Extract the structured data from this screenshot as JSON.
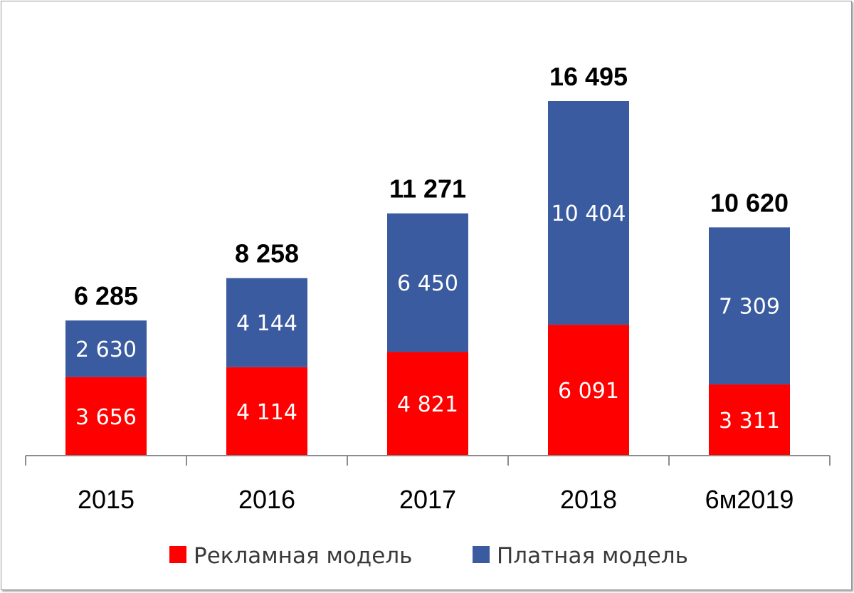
{
  "chart_data": {
    "type": "bar",
    "stacked": true,
    "categories": [
      "2015",
      "2016",
      "2017",
      "2018",
      "6м2019"
    ],
    "series": [
      {
        "name": "Рекламная модель",
        "color": "#ff0000",
        "values": [
          3656,
          4114,
          4821,
          6091,
          3311
        ],
        "labels": [
          "3 656",
          "4 114",
          "4 821",
          "6 091",
          "3 311"
        ]
      },
      {
        "name": "Платная модель",
        "color": "#3a5ba0",
        "values": [
          2630,
          4144,
          6450,
          10404,
          7309
        ],
        "labels": [
          "2 630",
          "4 144",
          "6 450",
          "10 404",
          "7 309"
        ]
      }
    ],
    "totals": [
      6285,
      8258,
      11271,
      16495,
      10620
    ],
    "total_labels": [
      "6 285",
      "8 258",
      "11 271",
      "16 495",
      "10 620"
    ],
    "ylim": [
      0,
      16495
    ],
    "title": "",
    "xlabel": "",
    "ylabel": "",
    "grid": false,
    "legend_position": "bottom"
  }
}
